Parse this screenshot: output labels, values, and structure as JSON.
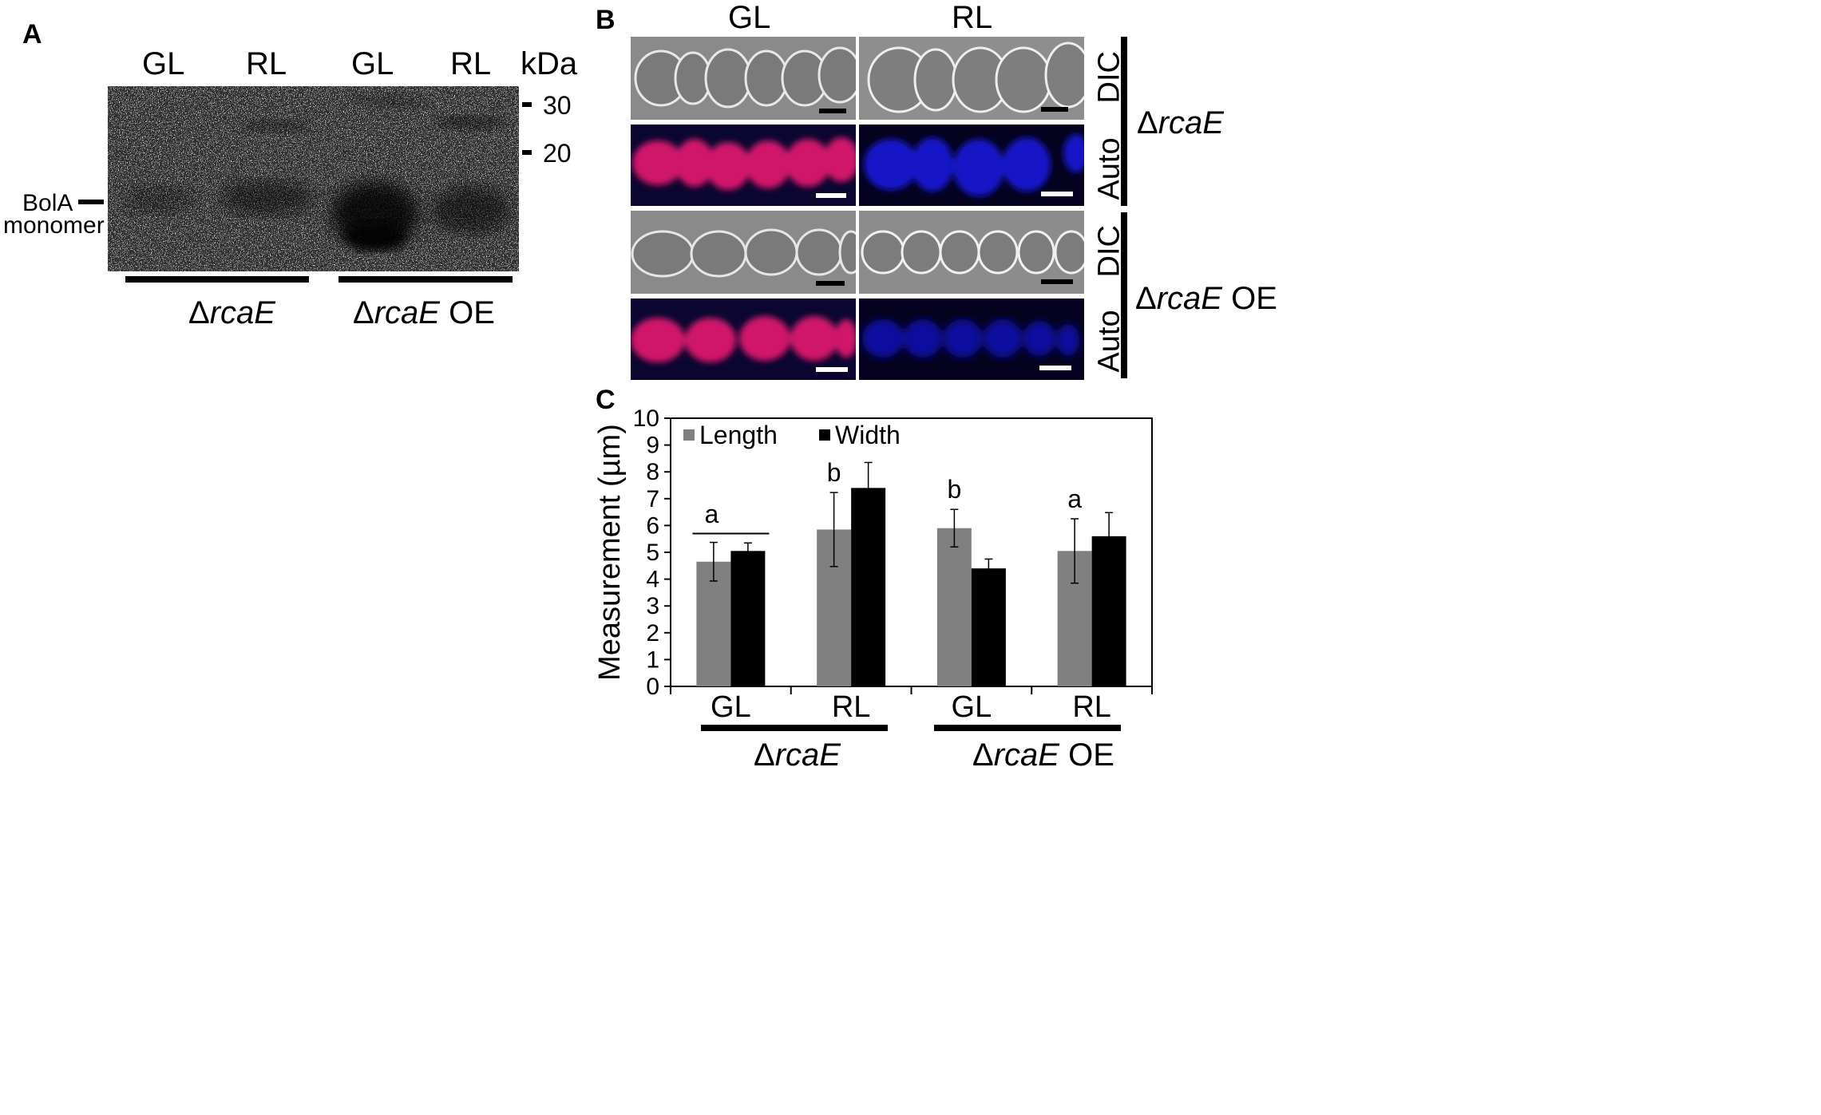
{
  "panel_a": {
    "letter": "A",
    "lanes": [
      "GL",
      "RL",
      "GL",
      "RL"
    ],
    "kda_label": "kDa",
    "markers": [
      "30",
      "20"
    ],
    "band_label_line1": "BolA",
    "band_label_line2": "monomer",
    "groups": [
      {
        "delta": "Δ",
        "italic": "rcaE",
        "suffix": ""
      },
      {
        "delta": "Δ",
        "italic": "rcaE",
        "suffix": " OE"
      }
    ]
  },
  "panel_b": {
    "letter": "B",
    "columns": [
      "GL",
      "RL"
    ],
    "row_labels": [
      "DIC",
      "Auto",
      "DIC",
      "Auto"
    ],
    "groups": [
      {
        "delta": "Δ",
        "italic": "rcaE",
        "suffix": ""
      },
      {
        "delta": "Δ",
        "italic": "rcaE",
        "suffix": " OE"
      }
    ],
    "colors": {
      "dic": "#8a8a8a",
      "auto_gl": "#d0186a",
      "auto_rl": "#1010c8",
      "auto_bg": "#0a0630"
    }
  },
  "panel_c": {
    "letter": "C",
    "group_labels": [
      {
        "delta": "Δ",
        "italic": "rcaE",
        "suffix": ""
      },
      {
        "delta": "Δ",
        "italic": "rcaE",
        "suffix": " OE"
      }
    ]
  },
  "chart_data": {
    "type": "bar",
    "categories": [
      "GL",
      "RL",
      "GL",
      "RL"
    ],
    "series": [
      {
        "name": "Length",
        "color": "#808080",
        "values": [
          4.65,
          5.85,
          5.9,
          5.05
        ],
        "errors": [
          0.72,
          1.38,
          0.7,
          1.2
        ]
      },
      {
        "name": "Width",
        "color": "#000000",
        "values": [
          5.05,
          7.4,
          4.4,
          5.6
        ],
        "errors": [
          0.3,
          0.95,
          0.35,
          0.88
        ]
      }
    ],
    "significance": [
      "a",
      "b",
      "b",
      "a"
    ],
    "ylabel": "Measurement (µm)",
    "ylim": [
      0,
      10
    ],
    "yticks": [
      "0",
      "1",
      "2",
      "3",
      "4",
      "5",
      "6",
      "7",
      "8",
      "9",
      "10"
    ],
    "legend_position": "top-left",
    "grid": false
  }
}
